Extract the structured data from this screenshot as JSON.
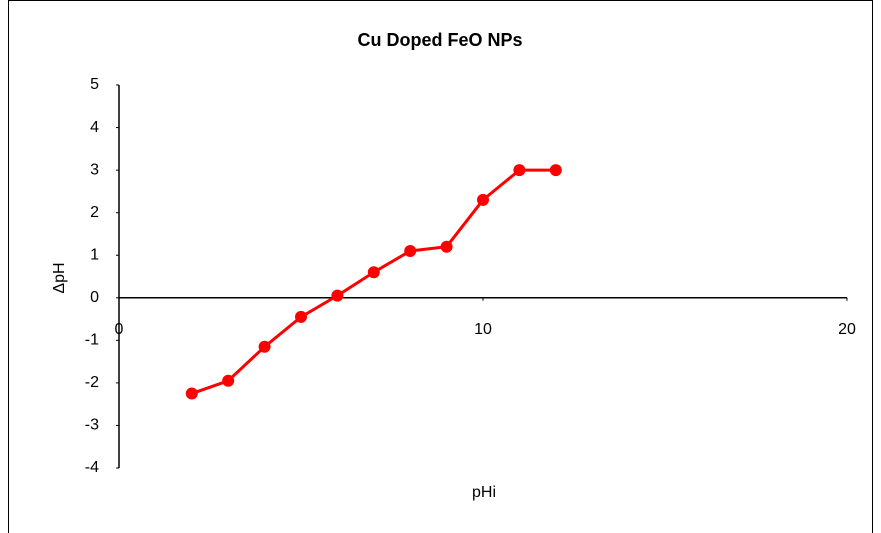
{
  "chart_data": {
    "type": "line",
    "title": "Cu Doped FeO NPs",
    "x_label": "pHi",
    "y_label": "ΔpH",
    "series": [
      {
        "name": "ΔpH",
        "color": "#ff0000",
        "x": [
          2,
          3,
          4,
          5,
          6,
          7,
          8,
          9,
          10,
          11,
          12
        ],
        "values": [
          -2.25,
          -1.95,
          -1.15,
          -0.45,
          0.05,
          0.6,
          1.1,
          1.2,
          2.3,
          3.0,
          3.0
        ]
      }
    ],
    "xlim": [
      0,
      20
    ],
    "xticks": [
      0,
      10,
      20
    ],
    "ylim": [
      -4,
      5
    ],
    "yticks": [
      -4,
      -3,
      -2,
      -1,
      0,
      1,
      2,
      3,
      4,
      5
    ],
    "grid": false,
    "legend": false
  }
}
